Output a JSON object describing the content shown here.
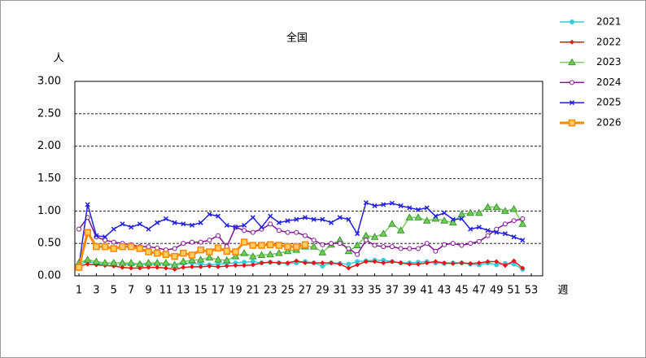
{
  "chart_data": {
    "type": "line",
    "title": "全国",
    "y_label": "人",
    "x_label": "週",
    "x": [
      1,
      2,
      3,
      4,
      5,
      6,
      7,
      8,
      9,
      10,
      11,
      12,
      13,
      14,
      15,
      16,
      17,
      18,
      19,
      20,
      21,
      22,
      23,
      24,
      25,
      26,
      27,
      28,
      29,
      30,
      31,
      32,
      33,
      34,
      35,
      36,
      37,
      38,
      39,
      40,
      41,
      42,
      43,
      44,
      45,
      46,
      47,
      48,
      49,
      50,
      51,
      52
    ],
    "xlim": [
      1,
      53
    ],
    "xticks": [
      1,
      3,
      5,
      7,
      9,
      11,
      13,
      15,
      17,
      19,
      21,
      23,
      25,
      27,
      29,
      31,
      33,
      35,
      37,
      39,
      41,
      43,
      45,
      47,
      49,
      51,
      53
    ],
    "ylim": [
      0,
      3
    ],
    "yticks": [
      {
        "value": 0,
        "label": "0.00"
      },
      {
        "value": 0.5,
        "label": "0.50"
      },
      {
        "value": 1,
        "label": "1.00"
      },
      {
        "value": 1.5,
        "label": "1.50"
      },
      {
        "value": 2,
        "label": "2.00"
      },
      {
        "value": 2.5,
        "label": "2.50"
      },
      {
        "value": 3,
        "label": "3.00"
      }
    ],
    "grid": true,
    "series": [
      {
        "name": "2021",
        "color": "#33ccdd",
        "marker": "circle",
        "values": [
          0.18,
          0.22,
          0.2,
          0.18,
          0.2,
          0.19,
          0.17,
          0.18,
          0.17,
          0.19,
          0.18,
          0.16,
          0.19,
          0.2,
          0.18,
          0.17,
          0.18,
          0.19,
          0.2,
          0.21,
          0.22,
          0.2,
          0.21,
          0.2,
          0.19,
          0.2,
          0.22,
          0.2,
          0.15,
          0.2,
          0.19,
          0.18,
          0.22,
          0.23,
          0.24,
          0.24,
          0.22,
          0.2,
          0.2,
          0.21,
          0.22,
          0.2,
          0.19,
          0.2,
          0.2,
          0.18,
          0.17,
          0.2,
          0.17,
          0.19,
          0.18,
          0.1
        ]
      },
      {
        "name": "2022",
        "color": "#ee1111",
        "marker": "diamond",
        "values": [
          0.15,
          0.18,
          0.17,
          0.16,
          0.15,
          0.13,
          0.12,
          0.12,
          0.13,
          0.13,
          0.12,
          0.1,
          0.13,
          0.14,
          0.14,
          0.15,
          0.14,
          0.15,
          0.16,
          0.16,
          0.17,
          0.2,
          0.21,
          0.2,
          0.2,
          0.23,
          0.2,
          0.2,
          0.2,
          0.2,
          0.18,
          0.12,
          0.17,
          0.22,
          0.22,
          0.2,
          0.22,
          0.2,
          0.18,
          0.18,
          0.2,
          0.22,
          0.2,
          0.19,
          0.2,
          0.19,
          0.2,
          0.22,
          0.22,
          0.16,
          0.23,
          0.12
        ]
      },
      {
        "name": "2023",
        "color": "#77cc55",
        "marker": "triangle",
        "values": [
          0.2,
          0.25,
          0.22,
          0.2,
          0.2,
          0.2,
          0.2,
          0.18,
          0.2,
          0.2,
          0.2,
          0.17,
          0.22,
          0.24,
          0.25,
          0.28,
          0.25,
          0.24,
          0.3,
          0.35,
          0.3,
          0.32,
          0.33,
          0.35,
          0.38,
          0.4,
          0.45,
          0.45,
          0.36,
          0.48,
          0.55,
          0.38,
          0.47,
          0.62,
          0.6,
          0.65,
          0.8,
          0.7,
          0.9,
          0.9,
          0.85,
          0.88,
          0.85,
          0.82,
          0.95,
          0.97,
          0.97,
          1.06,
          1.06,
          1.0,
          1.03,
          0.8
        ]
      },
      {
        "name": "2024",
        "color": "#881199",
        "marker": "circle",
        "values": [
          0.72,
          0.9,
          0.6,
          0.55,
          0.52,
          0.5,
          0.48,
          0.45,
          0.45,
          0.43,
          0.4,
          0.42,
          0.5,
          0.52,
          0.52,
          0.55,
          0.62,
          0.45,
          0.75,
          0.7,
          0.67,
          0.72,
          0.8,
          0.7,
          0.67,
          0.67,
          0.62,
          0.55,
          0.48,
          0.5,
          0.5,
          0.42,
          0.33,
          0.55,
          0.47,
          0.45,
          0.45,
          0.42,
          0.42,
          0.42,
          0.5,
          0.38,
          0.48,
          0.5,
          0.47,
          0.5,
          0.53,
          0.62,
          0.72,
          0.8,
          0.85,
          0.88
        ]
      },
      {
        "name": "2025",
        "color": "#2222dd",
        "marker": "x",
        "values": [
          0.15,
          1.1,
          0.62,
          0.6,
          0.72,
          0.8,
          0.75,
          0.8,
          0.72,
          0.82,
          0.88,
          0.82,
          0.8,
          0.78,
          0.82,
          0.95,
          0.92,
          0.78,
          0.75,
          0.78,
          0.9,
          0.75,
          0.92,
          0.82,
          0.85,
          0.87,
          0.9,
          0.87,
          0.87,
          0.82,
          0.9,
          0.87,
          0.65,
          1.13,
          1.08,
          1.1,
          1.12,
          1.08,
          1.05,
          1.02,
          1.05,
          0.92,
          0.97,
          0.87,
          0.88,
          0.72,
          0.75,
          0.7,
          0.67,
          0.65,
          0.6,
          0.55
        ]
      },
      {
        "name": "2026",
        "color": "#ff8800",
        "marker": "square",
        "width": 3,
        "values": [
          0.13,
          0.67,
          0.45,
          0.45,
          0.42,
          0.45,
          0.45,
          0.42,
          0.37,
          0.35,
          0.33,
          0.3,
          0.35,
          0.32,
          0.4,
          0.37,
          0.43,
          0.38,
          0.37,
          0.52,
          0.47,
          0.47,
          0.48,
          0.47,
          0.45,
          0.45,
          0.48,
          null,
          null,
          null,
          null,
          null,
          null,
          null,
          null,
          null,
          null,
          null,
          null,
          null,
          null,
          null,
          null,
          null,
          null,
          null,
          null,
          null,
          null,
          null,
          null,
          null
        ]
      }
    ]
  }
}
